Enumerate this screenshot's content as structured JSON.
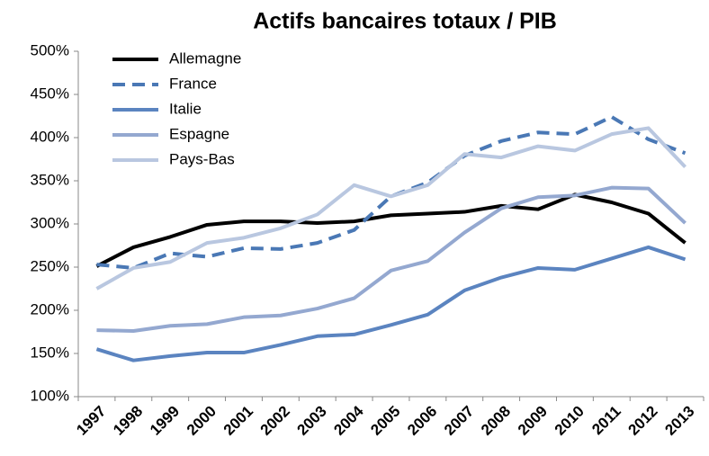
{
  "chart_data": {
    "type": "line",
    "title": "Actifs bancaires totaux / PIB",
    "categories": [
      "1997",
      "1998",
      "1999",
      "2000",
      "2001",
      "2002",
      "2003",
      "2004",
      "2005",
      "2006",
      "2007",
      "2008",
      "2009",
      "2010",
      "2011",
      "2012",
      "2013"
    ],
    "ylim": [
      100,
      500
    ],
    "yticks": [
      {
        "value": 100,
        "label": "100%"
      },
      {
        "value": 150,
        "label": "150%"
      },
      {
        "value": 200,
        "label": "200%"
      },
      {
        "value": 250,
        "label": "250%"
      },
      {
        "value": 300,
        "label": "300%"
      },
      {
        "value": 350,
        "label": "350%"
      },
      {
        "value": 400,
        "label": "400%"
      },
      {
        "value": 450,
        "label": "450%"
      },
      {
        "value": 500,
        "label": "500%"
      }
    ],
    "legend": "upper left",
    "series": [
      {
        "name": "Allemagne",
        "color": "#000000",
        "dashed": false,
        "values": [
          251,
          273,
          285,
          299,
          303,
          303,
          301,
          303,
          310,
          312,
          314,
          321,
          317,
          334,
          325,
          312,
          278
        ]
      },
      {
        "name": "France",
        "color": "#4a78b5",
        "dashed": true,
        "values": [
          253,
          249,
          266,
          262,
          272,
          271,
          278,
          293,
          332,
          348,
          379,
          396,
          406,
          404,
          424,
          398,
          382
        ]
      },
      {
        "name": "Italie",
        "color": "#5b84c0",
        "dashed": false,
        "values": [
          155,
          142,
          147,
          151,
          151,
          160,
          170,
          172,
          183,
          195,
          223,
          238,
          249,
          247,
          260,
          273,
          259
        ]
      },
      {
        "name": "Espagne",
        "color": "#94a8d0",
        "dashed": false,
        "values": [
          177,
          176,
          182,
          184,
          192,
          194,
          202,
          214,
          246,
          257,
          290,
          318,
          331,
          333,
          342,
          341,
          301
        ]
      },
      {
        "name": "Pays-Bas",
        "color": "#b9c7e0",
        "dashed": false,
        "values": [
          225,
          249,
          256,
          278,
          284,
          295,
          311,
          345,
          332,
          345,
          381,
          377,
          390,
          385,
          404,
          411,
          366
        ]
      }
    ]
  }
}
